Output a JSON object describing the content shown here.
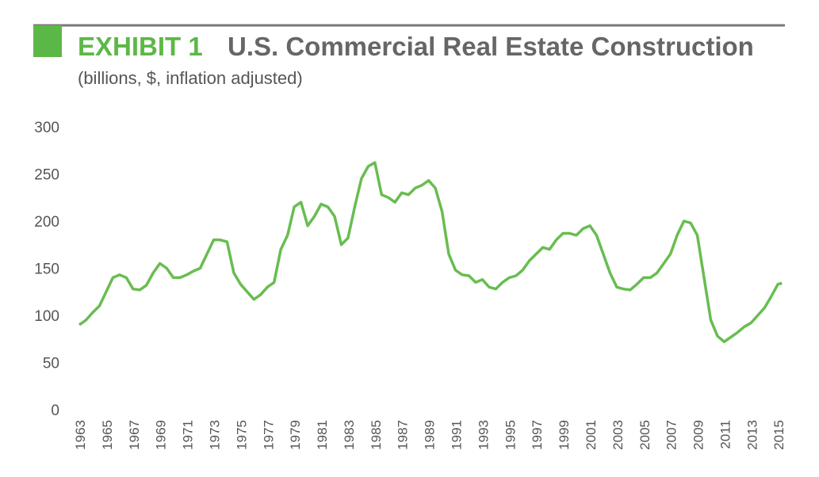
{
  "chart_data": {
    "type": "line",
    "label": "EXHIBIT 1",
    "title": "U.S. Commercial Real Estate Construction",
    "subtitle": "(billions, $, inflation adjusted)",
    "color": "#68bd50",
    "x": [
      1963,
      1963.5,
      1964,
      1964.5,
      1965,
      1965.5,
      1966,
      1966.5,
      1967,
      1967.5,
      1968,
      1968.5,
      1969,
      1969.5,
      1970,
      1970.5,
      1971,
      1971.5,
      1972,
      1972.5,
      1973,
      1973.5,
      1974,
      1974.5,
      1975,
      1975.5,
      1976,
      1976.5,
      1977,
      1977.5,
      1978,
      1978.5,
      1979,
      1979.5,
      1980,
      1980.5,
      1981,
      1981.5,
      1982,
      1982.5,
      1983,
      1983.5,
      1984,
      1984.5,
      1985,
      1985.5,
      1986,
      1986.5,
      1987,
      1987.5,
      1988,
      1988.5,
      1989,
      1989.5,
      1990,
      1990.5,
      1991,
      1991.5,
      1992,
      1992.5,
      1993,
      1993.5,
      1994,
      1994.5,
      1995,
      1995.5,
      1996,
      1996.5,
      1997,
      1997.5,
      1998,
      1998.5,
      1999,
      1999.5,
      2000,
      2000.5,
      2001,
      2001.5,
      2002,
      2002.5,
      2003,
      2003.5,
      2004,
      2004.5,
      2005,
      2005.5,
      2006,
      2006.5,
      2007,
      2007.5,
      2008,
      2008.5,
      2009,
      2009.5,
      2010,
      2010.5,
      2011,
      2011.5,
      2012,
      2012.5,
      2013,
      2013.5,
      2014,
      2014.5,
      2015,
      2015.3
    ],
    "values": [
      90,
      95,
      103,
      110,
      125,
      140,
      143,
      140,
      128,
      127,
      132,
      145,
      155,
      150,
      140,
      140,
      143,
      147,
      150,
      165,
      180,
      180,
      178,
      145,
      133,
      125,
      117,
      122,
      130,
      135,
      170,
      185,
      215,
      220,
      195,
      205,
      218,
      215,
      205,
      175,
      182,
      215,
      245,
      258,
      262,
      228,
      225,
      220,
      230,
      228,
      235,
      238,
      243,
      235,
      210,
      165,
      148,
      143,
      142,
      135,
      138,
      130,
      128,
      135,
      140,
      142,
      148,
      158,
      165,
      172,
      170,
      180,
      187,
      187,
      185,
      192,
      195,
      185,
      165,
      145,
      130,
      128,
      127,
      133,
      140,
      140,
      145,
      155,
      165,
      185,
      200,
      198,
      185,
      140,
      95,
      78,
      72,
      77,
      82,
      88,
      92,
      100,
      108,
      120,
      133,
      134
    ],
    "xlim": [
      1963,
      2015.4
    ],
    "xticks": [
      1963,
      1965,
      1967,
      1969,
      1971,
      1973,
      1975,
      1977,
      1979,
      1981,
      1983,
      1985,
      1987,
      1989,
      1991,
      1993,
      1995,
      1997,
      1999,
      2001,
      2003,
      2005,
      2007,
      2009,
      2011,
      2013,
      2015
    ],
    "ylim": [
      0,
      300
    ],
    "yticks": [
      0,
      50,
      100,
      150,
      200,
      250,
      300
    ]
  }
}
